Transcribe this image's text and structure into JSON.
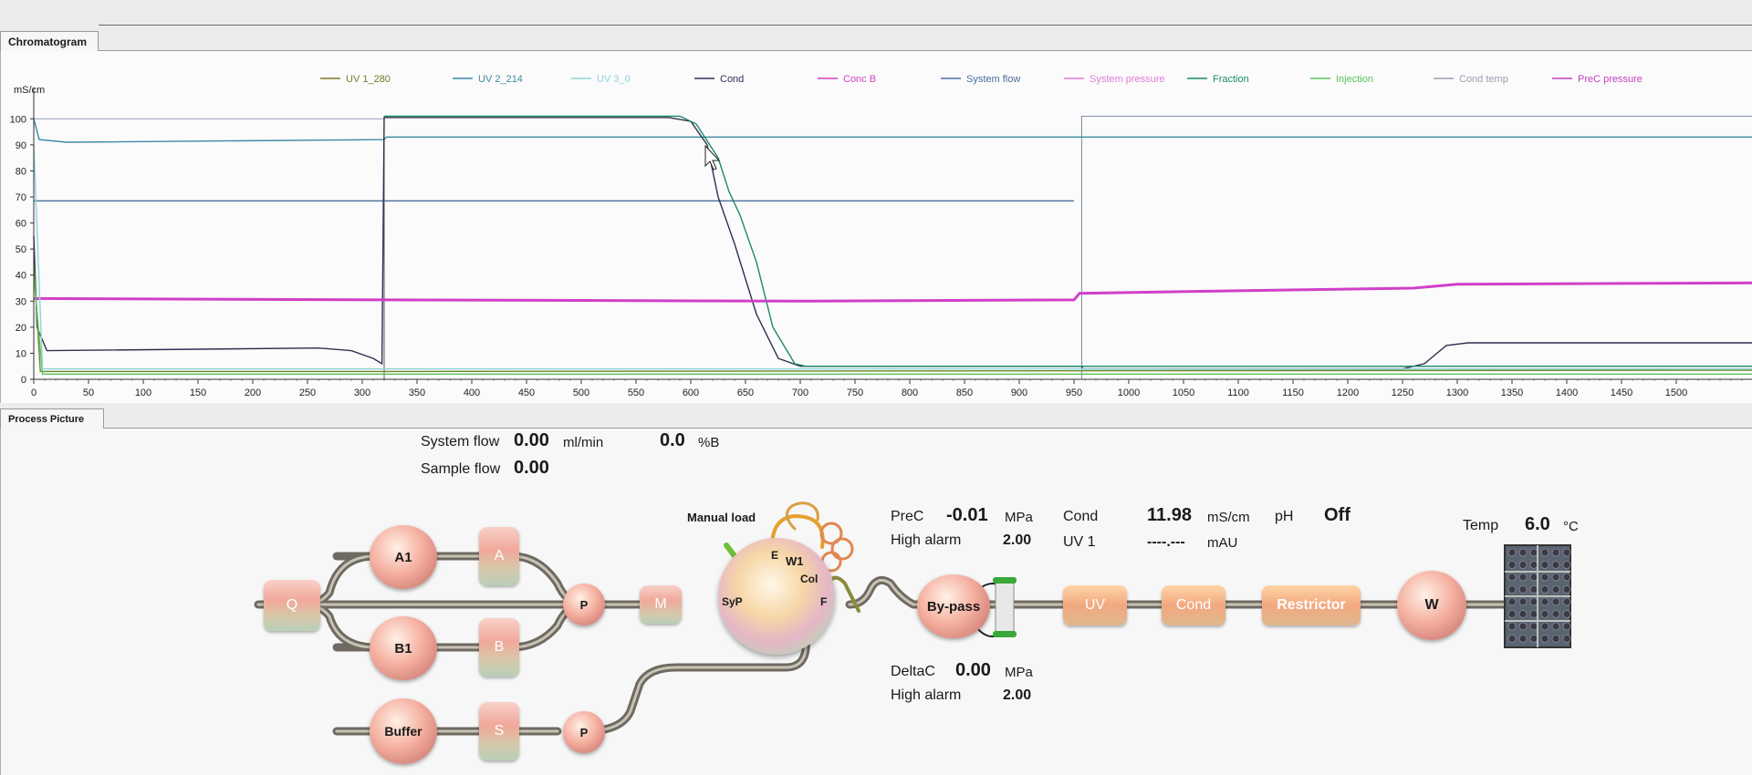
{
  "tabs": {
    "chromatogram": "Chromatogram",
    "process_picture": "Process Picture"
  },
  "chart_data": {
    "type": "line",
    "ylabel": "mS/cm",
    "xlim": [
      0,
      1570
    ],
    "ylim": [
      0,
      105
    ],
    "x_ticks": [
      "0",
      "50",
      "100",
      "150",
      "200",
      "250",
      "300",
      "350",
      "400",
      "450",
      "500",
      "550",
      "600",
      "650",
      "700",
      "750",
      "800",
      "850",
      "900",
      "950",
      "1000",
      "1050",
      "1100",
      "1150",
      "1200",
      "1250",
      "1300",
      "1350",
      "1400",
      "1450",
      "1500"
    ],
    "y_ticks": [
      "0",
      "10",
      "20",
      "30",
      "40",
      "50",
      "60",
      "70",
      "80",
      "90",
      "100"
    ],
    "legend": [
      {
        "name": "UV 1_280",
        "color": "#7a7a2a"
      },
      {
        "name": "UV 2_214",
        "color": "#3c8aa6"
      },
      {
        "name": "UV 3_0",
        "color": "#8ed2dc"
      },
      {
        "name": "Cond",
        "color": "#30305a"
      },
      {
        "name": "Conc B",
        "color": "#d040c8"
      },
      {
        "name": "System flow",
        "color": "#4a6e9e"
      },
      {
        "name": "System pressure",
        "color": "#e07ad8"
      },
      {
        "name": "Fraction",
        "color": "#1a8a6a"
      },
      {
        "name": "Injection",
        "color": "#5ac25a"
      },
      {
        "name": "Cond temp",
        "color": "#9aa0b0"
      },
      {
        "name": "PreC pressure",
        "color": "#c040c0"
      }
    ],
    "series": [
      {
        "name": "UV 2_214",
        "color": "#3c8aa6",
        "points": [
          [
            0,
            100
          ],
          [
            5,
            92
          ],
          [
            30,
            91
          ],
          [
            320,
            92
          ],
          [
            322,
            93
          ],
          [
            560,
            93
          ],
          [
            1570,
            93
          ]
        ]
      },
      {
        "name": "System flow",
        "color": "#4a6e9e",
        "points": [
          [
            0,
            68.5
          ],
          [
            950,
            68.5
          ]
        ]
      },
      {
        "name": "Cond",
        "color": "#303050",
        "points": [
          [
            0,
            55
          ],
          [
            3,
            20
          ],
          [
            12,
            11
          ],
          [
            260,
            12
          ],
          [
            290,
            11
          ],
          [
            310,
            8
          ],
          [
            318,
            6
          ],
          [
            320,
            100.5
          ],
          [
            580,
            100.5
          ],
          [
            600,
            99
          ],
          [
            615,
            90
          ],
          [
            625,
            70
          ],
          [
            640,
            52
          ],
          [
            660,
            25
          ],
          [
            680,
            8
          ],
          [
            700,
            5
          ],
          [
            957,
            5
          ],
          [
            958,
            4
          ],
          [
            1250,
            4
          ],
          [
            1270,
            6
          ],
          [
            1290,
            13
          ],
          [
            1310,
            14
          ],
          [
            1570,
            14
          ]
        ]
      },
      {
        "name": "Fraction",
        "color": "#1a8a6a",
        "points": [
          [
            320,
            101
          ],
          [
            590,
            101
          ],
          [
            605,
            98
          ],
          [
            625,
            85
          ],
          [
            635,
            72
          ],
          [
            645,
            63
          ],
          [
            660,
            45
          ],
          [
            675,
            20
          ],
          [
            695,
            6
          ],
          [
            705,
            5
          ],
          [
            1570,
            5
          ]
        ]
      },
      {
        "name": "Conc B",
        "color": "#d040c8",
        "points": [
          [
            0,
            31
          ],
          [
            320,
            30.5
          ],
          [
            700,
            30
          ],
          [
            950,
            30.5
          ],
          [
            955,
            33
          ],
          [
            1100,
            34
          ],
          [
            1260,
            35
          ],
          [
            1300,
            36.5
          ],
          [
            1570,
            37
          ]
        ]
      },
      {
        "name": "UV 1_280",
        "color": "#6a8a2a",
        "points": [
          [
            0,
            45
          ],
          [
            6,
            3
          ],
          [
            320,
            3
          ],
          [
            1570,
            3.5
          ]
        ]
      },
      {
        "name": "Injection",
        "color": "#5ac25a",
        "points": [
          [
            0,
            40
          ],
          [
            8,
            2
          ],
          [
            320,
            2
          ],
          [
            1570,
            2
          ]
        ]
      },
      {
        "name": "UV 3_0",
        "color": "#8ed2dc",
        "points": [
          [
            0,
            90
          ],
          [
            8,
            4
          ],
          [
            320,
            4
          ],
          [
            1570,
            4
          ]
        ]
      }
    ],
    "vlines": [
      {
        "x": 320,
        "ymax": 101,
        "color": "#7a4a6a"
      },
      {
        "x": 957,
        "ymax": 101,
        "color": "#6a8aa0"
      }
    ]
  },
  "process": {
    "system_flow_label": "System flow",
    "system_flow_value": "0.00",
    "system_flow_unit": "ml/min",
    "percent_b_value": "0.0",
    "percent_b_unit": "%B",
    "sample_flow_label": "Sample flow",
    "sample_flow_value": "0.00",
    "manual_load": "Manual load",
    "prec_label": "PreC",
    "prec_value": "-0.01",
    "prec_unit": "MPa",
    "prec_alarm_label": "High alarm",
    "prec_alarm_value": "2.00",
    "deltac_label": "DeltaC",
    "deltac_value": "0.00",
    "deltac_unit": "MPa",
    "deltac_alarm_label": "High alarm",
    "deltac_alarm_value": "2.00",
    "cond_label": "Cond",
    "cond_value": "11.98",
    "cond_unit": "mS/cm",
    "ph_label": "pH",
    "ph_value": "Off",
    "uv1_label": "UV 1",
    "uv1_value": "----.---",
    "uv1_unit": "mAU",
    "temp_label": "Temp",
    "temp_value": "6.0",
    "temp_unit": "°C",
    "nodes": {
      "q": "Q",
      "a1": "A1",
      "b1": "B1",
      "a": "A",
      "b": "B",
      "p1": "P",
      "m": "M",
      "syp": "SyP",
      "e": "E",
      "w1": "W1",
      "col": "Col",
      "f": "F",
      "buffer": "Buffer",
      "s": "S",
      "p2": "P",
      "bypass": "By-pass",
      "uv": "UV",
      "cond": "Cond",
      "restrictor": "Restrictor",
      "w": "W"
    }
  }
}
